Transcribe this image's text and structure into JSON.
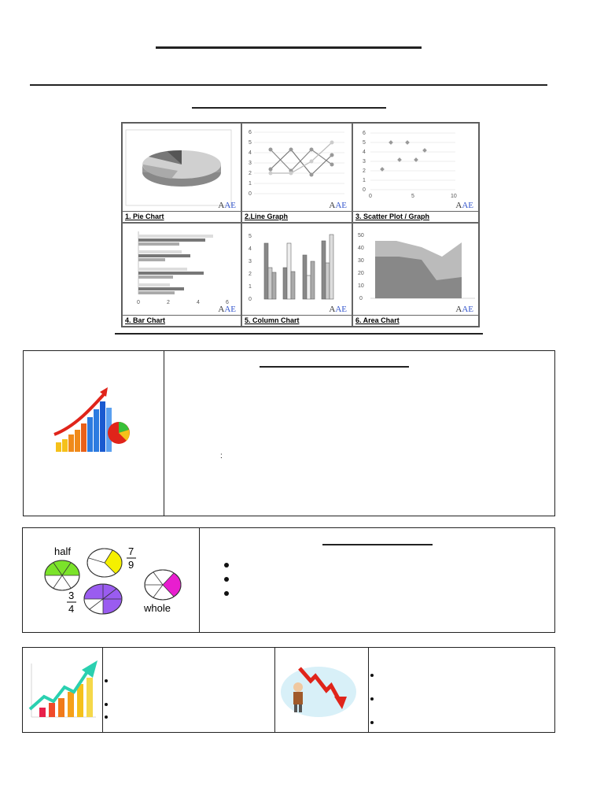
{
  "chart_types": [
    {
      "caption": "1. Pie Chart",
      "logo": "AE"
    },
    {
      "caption": "2.Line Graph",
      "logo": "AE"
    },
    {
      "caption": "3. Scatter Plot  / Graph",
      "logo": "AE"
    },
    {
      "caption": "4. Bar Chart",
      "logo": "AE"
    },
    {
      "caption": "5. Column Chart",
      "logo": "AE"
    },
    {
      "caption": "6. Area Chart",
      "logo": "AE"
    }
  ],
  "line_axis": [
    "0",
    "1",
    "2",
    "3",
    "4",
    "5",
    "6"
  ],
  "scatter_y_axis": [
    "0",
    "1",
    "2",
    "3",
    "4",
    "5",
    "6"
  ],
  "scatter_x_axis": [
    "0",
    "5",
    "10"
  ],
  "bar_axis": [
    "0",
    "2",
    "4",
    "6"
  ],
  "column_axis": [
    "0",
    "1",
    "2",
    "3",
    "4",
    "5"
  ],
  "area_axis": [
    "0",
    "10",
    "20",
    "30",
    "40",
    "50"
  ],
  "fractions": {
    "half": "half",
    "seven": "7",
    "nine": "9",
    "three": "3",
    "four": "4",
    "whole": "whole"
  },
  "colon_text": ":",
  "colors": {
    "fraction_green": "#7be32a",
    "fraction_yellow": "#f5f000",
    "fraction_purple": "#9a5cf0",
    "fraction_magenta": "#e81ecf",
    "arrow_red": "#e0241a",
    "arrow_teal": "#2ad0b0"
  }
}
